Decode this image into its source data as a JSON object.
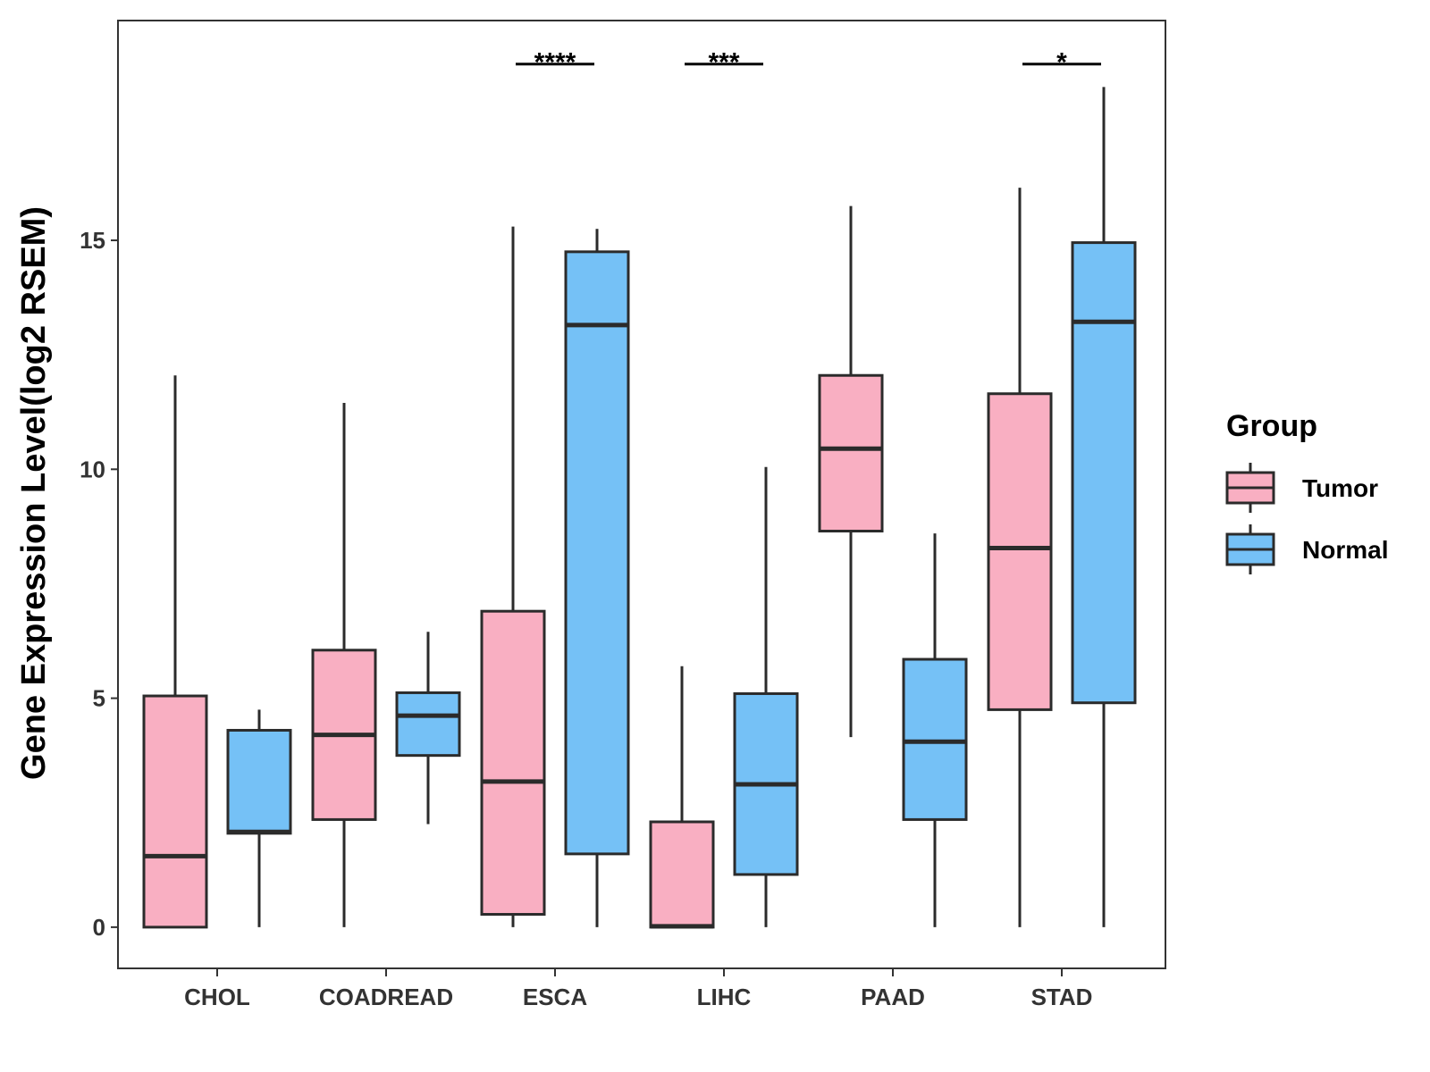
{
  "chart_data": {
    "type": "boxplot",
    "ylabel": "Gene Expression Level(log2 RSEM)",
    "xlabel": "",
    "ylim": [
      -0.9,
      19.8
    ],
    "yticks": [
      0,
      5,
      10,
      15
    ],
    "ytick_labels": [
      "0",
      "5",
      "10",
      "15"
    ],
    "categories": [
      "CHOL",
      "COADREAD",
      "ESCA",
      "LIHC",
      "PAAD",
      "STAD"
    ],
    "legend": {
      "title": "Group",
      "position": "right",
      "entries": [
        {
          "name": "Tumor",
          "color": "#F9AFC2"
        },
        {
          "name": "Normal",
          "color": "#75C1F6"
        }
      ]
    },
    "series": [
      {
        "name": "Tumor",
        "color": "#F9AFC2",
        "boxes": [
          {
            "category": "CHOL",
            "min": 0.0,
            "q1": 0.0,
            "median": 1.55,
            "q3": 5.05,
            "max": 12.05
          },
          {
            "category": "COADREAD",
            "min": 0.0,
            "q1": 2.35,
            "median": 4.2,
            "q3": 6.05,
            "max": 11.45
          },
          {
            "category": "ESCA",
            "min": 0.0,
            "q1": 0.28,
            "median": 3.18,
            "q3": 6.9,
            "max": 15.3
          },
          {
            "category": "LIHC",
            "min": 0.0,
            "q1": 0.0,
            "median": 0.02,
            "q3": 2.3,
            "max": 5.7
          },
          {
            "category": "PAAD",
            "min": 4.15,
            "q1": 8.65,
            "median": 10.45,
            "q3": 12.05,
            "max": 15.75
          },
          {
            "category": "STAD",
            "min": 0.0,
            "q1": 4.75,
            "median": 8.28,
            "q3": 11.65,
            "max": 16.15
          }
        ]
      },
      {
        "name": "Normal",
        "color": "#75C1F6",
        "boxes": [
          {
            "category": "CHOL",
            "min": 0.0,
            "q1": 2.05,
            "median": 2.08,
            "q3": 4.3,
            "max": 4.75
          },
          {
            "category": "COADREAD",
            "min": 2.25,
            "q1": 3.75,
            "median": 4.62,
            "q3": 5.12,
            "max": 6.45
          },
          {
            "category": "ESCA",
            "min": 0.0,
            "q1": 1.6,
            "median": 13.15,
            "q3": 14.75,
            "max": 15.25
          },
          {
            "category": "LIHC",
            "min": 0.0,
            "q1": 1.15,
            "median": 3.12,
            "q3": 5.1,
            "max": 10.05
          },
          {
            "category": "PAAD",
            "min": 0.0,
            "q1": 2.35,
            "median": 4.05,
            "q3": 5.85,
            "max": 8.6
          },
          {
            "category": "STAD",
            "min": 0.0,
            "q1": 4.9,
            "median": 13.22,
            "q3": 14.95,
            "max": 18.35
          }
        ]
      }
    ],
    "annotations": [
      {
        "category": "ESCA",
        "label": "****",
        "y": 18.85
      },
      {
        "category": "LIHC",
        "label": "***",
        "y": 18.85
      },
      {
        "category": "STAD",
        "label": "*",
        "y": 18.85
      }
    ]
  }
}
